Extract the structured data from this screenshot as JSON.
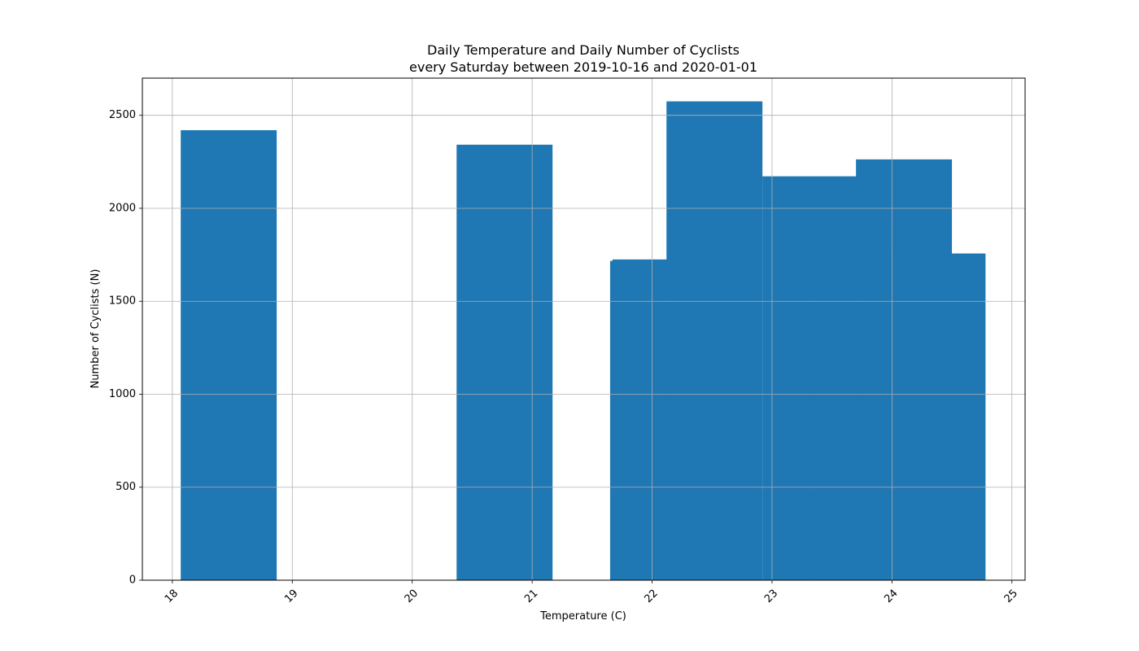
{
  "chart_data": {
    "type": "bar",
    "title": "Daily Temperature and Daily Number of Cyclists\nevery Saturday between 2019-10-16 and 2020-01-01",
    "title_lines": [
      "Daily Temperature and Daily Number of Cyclists",
      "every Saturday between 2019-10-16 and 2020-01-01"
    ],
    "xlabel": "Temperature (C)",
    "ylabel": "Number of Cyclists (N)",
    "xlim": [
      17.75,
      25.11
    ],
    "ylim": [
      0,
      2700
    ],
    "xticks": [
      18,
      19,
      20,
      21,
      22,
      23,
      24,
      25
    ],
    "yticks": [
      0,
      500,
      1000,
      1500,
      2000,
      2500
    ],
    "x_tick_rotation": 45,
    "grid": true,
    "bar_color": "#1f77b4",
    "bar_width": 0.8,
    "bars": [
      {
        "x": 18.47,
        "value": 2420
      },
      {
        "x": 20.77,
        "value": 2342
      },
      {
        "x": 22.05,
        "value": 1717
      },
      {
        "x": 22.07,
        "value": 1725
      },
      {
        "x": 22.52,
        "value": 2575
      },
      {
        "x": 23.32,
        "value": 2172
      },
      {
        "x": 23.7,
        "value": 1932
      },
      {
        "x": 24.1,
        "value": 2263
      },
      {
        "x": 24.38,
        "value": 1757
      }
    ]
  }
}
